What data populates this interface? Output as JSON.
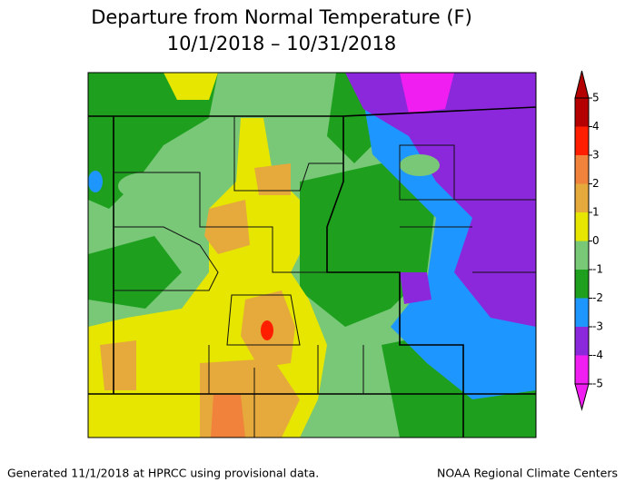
{
  "header": {
    "title": "Departure from Normal Temperature (F)",
    "subtitle": "10/1/2018 – 10/31/2018"
  },
  "colorbar": {
    "ticks": [
      5,
      4,
      3,
      2,
      1,
      0,
      -1,
      -2,
      -3,
      -4,
      -5
    ],
    "colors": [
      "#b40000",
      "#ff1e00",
      "#f0823c",
      "#e6aa3c",
      "#e6e600",
      "#78c878",
      "#1ea01e",
      "#1e96ff",
      "#8c28dc",
      "#f01ef0"
    ]
  },
  "footer": {
    "left": "Generated 11/1/2018 at HPRCC using provisional data.",
    "right": "NOAA Regional Climate Centers"
  }
}
